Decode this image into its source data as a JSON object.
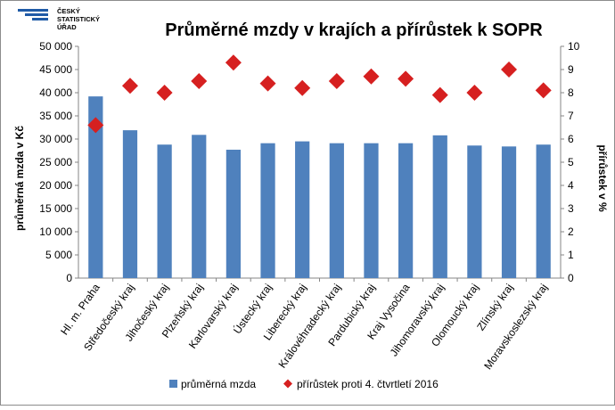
{
  "logo": {
    "line1": "ČESKÝ",
    "line2": "STATISTICKÝ",
    "line3": "ÚŘAD",
    "color": "#1f5aa6"
  },
  "chart_data": {
    "type": "bar",
    "title": "Průměrné mzdy v krajích a přírůstek k SOPR",
    "ylabel": "průměrná mzda v Kč",
    "y2label": "přírůstek v %",
    "xlabel": "",
    "ylim": [
      0,
      50000
    ],
    "y2lim": [
      0,
      10
    ],
    "yticks": [
      "0",
      "5 000",
      "10 000",
      "15 000",
      "20 000",
      "25 000",
      "30 000",
      "35 000",
      "40 000",
      "45 000",
      "50 000"
    ],
    "y2ticks": [
      "0",
      "1",
      "2",
      "3",
      "4",
      "5",
      "6",
      "7",
      "8",
      "9",
      "10"
    ],
    "grid": false,
    "legend_position": "bottom",
    "categories": [
      "Hl. m. Praha",
      "Středočeský kraj",
      "Jihočeský kraj",
      "Plzeňský kraj",
      "Karlovarský kraj",
      "Ústecký kraj",
      "Liberecký kraj",
      "Královéhradecký kraj",
      "Pardubický kraj",
      "Kraj Vysočina",
      "Jihomoravský kraj",
      "Olomoucký kraj",
      "Zlínský kraj",
      "Moravskoslezský kraj"
    ],
    "series": [
      {
        "name": "průměrná mzda",
        "type": "bar",
        "axis": "left",
        "color": "#4f81bd",
        "values": [
          39200,
          31900,
          28800,
          30900,
          27700,
          29100,
          29500,
          29100,
          29100,
          29100,
          30800,
          28600,
          28400,
          28800
        ]
      },
      {
        "name": "přírůstek proti 4. čtvrtletí 2016",
        "type": "scatter",
        "marker": "diamond",
        "axis": "right",
        "color": "#d62020",
        "values": [
          6.6,
          8.3,
          8.0,
          8.5,
          9.3,
          8.4,
          8.2,
          8.5,
          8.7,
          8.6,
          7.9,
          8.0,
          9.0,
          8.1
        ]
      }
    ]
  }
}
